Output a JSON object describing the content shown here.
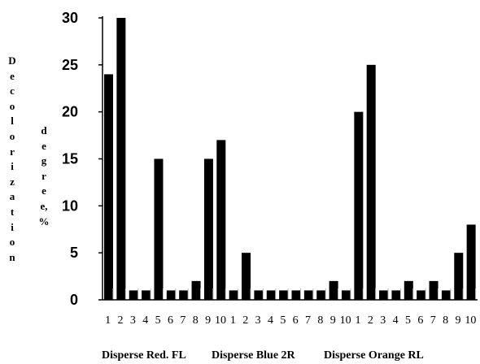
{
  "chart_data": {
    "type": "bar",
    "ylabel": "Decolorization degree, %",
    "ylabel_words": [
      "Decolorization",
      "degree,",
      "%"
    ],
    "ylim": [
      0,
      30
    ],
    "yticks": [
      0,
      5,
      10,
      15,
      20,
      25,
      30
    ],
    "grid": false,
    "bar_color": "#000000",
    "categories": [
      "1",
      "2",
      "3",
      "4",
      "5",
      "6",
      "7",
      "8",
      "9",
      "10",
      "1",
      "2",
      "3",
      "4",
      "5",
      "6",
      "7",
      "8",
      "9",
      "10",
      "1",
      "2",
      "3",
      "4",
      "5",
      "6",
      "7",
      "8",
      "9",
      "10"
    ],
    "groups": [
      {
        "name": "Disperse Red. FL",
        "categories": [
          "1",
          "2",
          "3",
          "4",
          "5",
          "6",
          "7",
          "8",
          "9",
          "10"
        ],
        "values": [
          24,
          30,
          1,
          1,
          15,
          1,
          1,
          2,
          15,
          17
        ]
      },
      {
        "name": "Disperse Blue 2R",
        "categories": [
          "1",
          "2",
          "3",
          "4",
          "5",
          "6",
          "7",
          "8",
          "9",
          "10"
        ],
        "values": [
          1,
          5,
          1,
          1,
          1,
          1,
          1,
          1,
          2,
          1
        ]
      },
      {
        "name": "Disperse Orange RL",
        "categories": [
          "1",
          "2",
          "3",
          "4",
          "5",
          "6",
          "7",
          "8",
          "9",
          "10"
        ],
        "values": [
          20,
          25,
          1,
          1,
          2,
          1,
          2,
          1,
          5,
          8
        ]
      }
    ]
  }
}
